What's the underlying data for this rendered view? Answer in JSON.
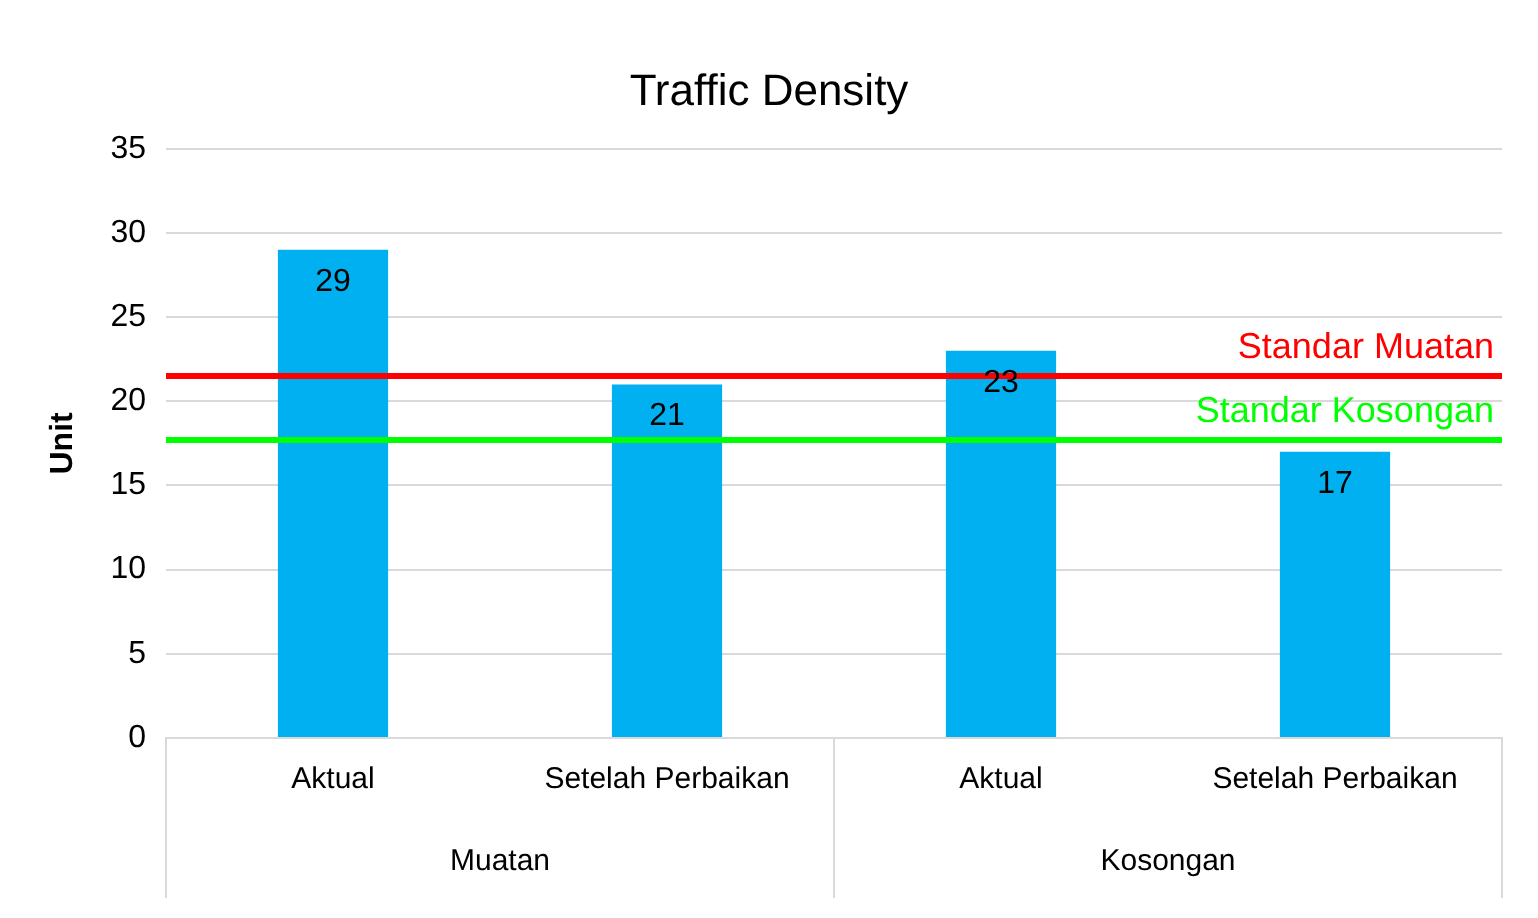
{
  "chart_data": {
    "type": "bar",
    "title": "Traffic Density",
    "ylabel": "Unit",
    "categories": [
      "Aktual",
      "Setelah Perbaikan",
      "Aktual",
      "Setelah Perbaikan"
    ],
    "values": [
      29,
      21,
      23,
      17
    ],
    "color": "#00b0f0",
    "data_labels": true,
    "ylim": [
      0,
      35
    ],
    "yticks": [
      0,
      5,
      10,
      15,
      20,
      25,
      30,
      35
    ],
    "grid": "y",
    "legend": false,
    "ref_lines": [
      {
        "axis": "y",
        "value": 21.5,
        "label": "Standar Muatan",
        "color": "#ff0000"
      },
      {
        "axis": "y",
        "value": 17.7,
        "label": "Standar Kosongan",
        "color": "#00ff00"
      }
    ],
    "annotations": [
      "Muatan",
      "Kosongan"
    ]
  }
}
